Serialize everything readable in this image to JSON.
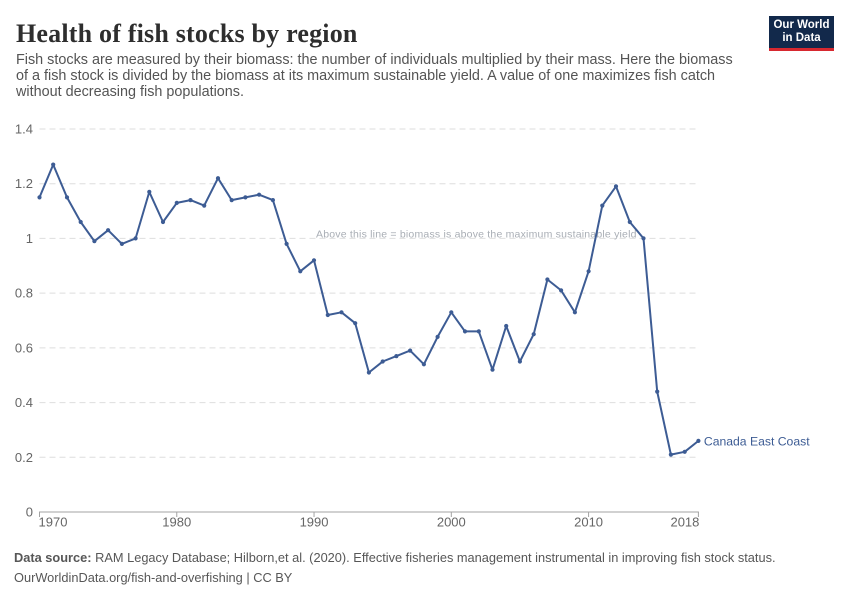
{
  "header": {
    "title": "Health of fish stocks by region",
    "subtitle": "Fish stocks are measured by their biomass: the number of individuals multiplied by their mass. Here the biomass of a fish stock is divided by the biomass at its maximum sustainable yield. A value of one maximizes fish catch without decreasing fish populations."
  },
  "logo": {
    "line1": "Our World",
    "line2": "in Data"
  },
  "footer": {
    "source_label": "Data source:",
    "source_text": " RAM Legacy Database; Hilborn,et al. (2020). Effective fisheries management instrumental in improving fish stock status.",
    "license_line": "OurWorldinData.org/fish-and-overfishing | CC BY"
  },
  "colors": {
    "line": "#3d5c94",
    "grid": "#dedede",
    "axis": "#a3a3a3",
    "tick_label": "#666666",
    "annotation": "#a9aeb5",
    "logo_navy": "#12294b",
    "logo_red": "#d7282f"
  },
  "chart_data": {
    "type": "line",
    "title": "Health of fish stocks by region",
    "xlabel": "",
    "ylabel": "",
    "ylim": [
      0,
      1.4
    ],
    "yticks": [
      0,
      0.2,
      0.4,
      0.6,
      0.8,
      1,
      1.2,
      1.4
    ],
    "ytick_labels": [
      "0",
      "0.2",
      "0.4",
      "0.6",
      "0.8",
      "1",
      "1.2",
      "1.4"
    ],
    "xticks": [
      1970,
      1980,
      1990,
      2000,
      2010,
      2018
    ],
    "grid": "horizontal-dashed",
    "annotation": "Above this line = biomass is above the maximum sustainable yield",
    "series": [
      {
        "name": "Canada East Coast",
        "x": [
          1970,
          1971,
          1972,
          1973,
          1974,
          1975,
          1976,
          1977,
          1978,
          1979,
          1980,
          1981,
          1982,
          1983,
          1984,
          1985,
          1986,
          1987,
          1988,
          1989,
          1990,
          1991,
          1992,
          1993,
          1994,
          1995,
          1996,
          1997,
          1998,
          1999,
          2000,
          2001,
          2002,
          2003,
          2004,
          2005,
          2006,
          2007,
          2008,
          2009,
          2010,
          2011,
          2012,
          2013,
          2014,
          2015,
          2016,
          2017,
          2018
        ],
        "values": [
          1.15,
          1.27,
          1.15,
          1.06,
          0.99,
          1.03,
          0.98,
          1.0,
          1.17,
          1.06,
          1.13,
          1.14,
          1.12,
          1.22,
          1.14,
          1.15,
          1.16,
          1.14,
          0.98,
          0.88,
          0.92,
          0.72,
          0.73,
          0.69,
          0.51,
          0.55,
          0.57,
          0.59,
          0.54,
          0.64,
          0.73,
          0.66,
          0.66,
          0.52,
          0.68,
          0.55,
          0.65,
          0.85,
          0.81,
          0.73,
          0.88,
          1.12,
          1.19,
          1.06,
          1.0,
          0.44,
          0.21,
          0.22,
          0.26
        ]
      }
    ]
  }
}
